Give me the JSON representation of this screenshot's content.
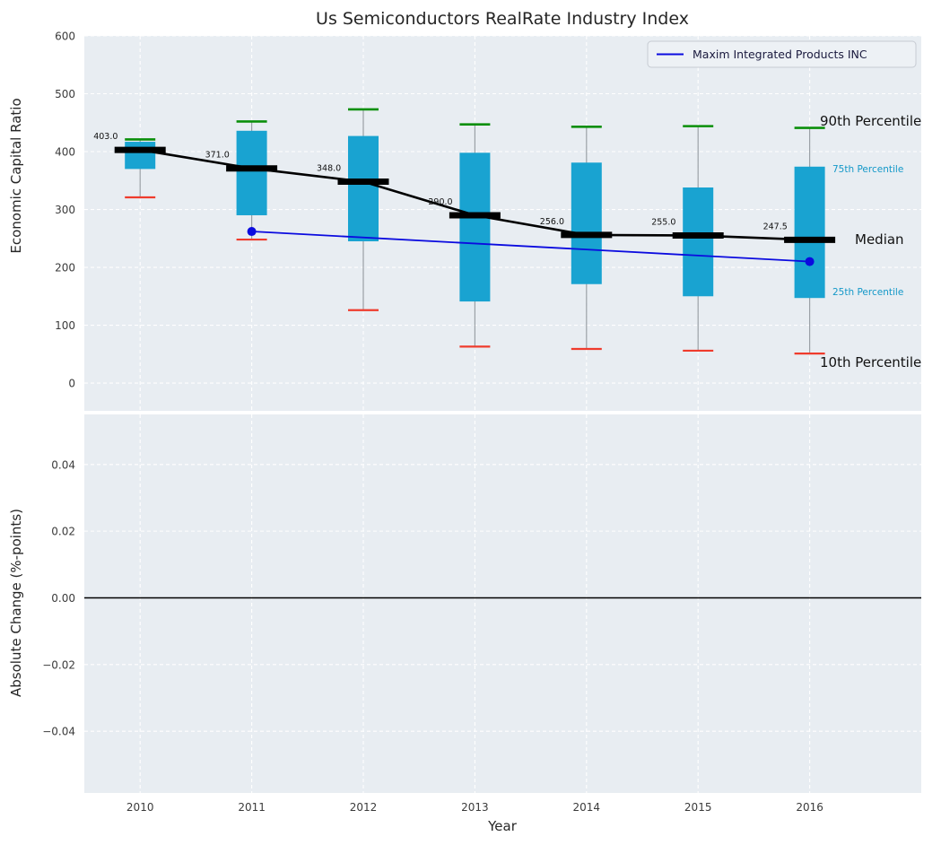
{
  "chart_data": {
    "type": "boxplot",
    "title": "Us Semiconductors RealRate Industry Index",
    "xlabel": "Year",
    "xlim": [
      2009.5,
      2017.0
    ],
    "xticks": [
      2010,
      2011,
      2012,
      2013,
      2014,
      2015,
      2016
    ],
    "panels": [
      {
        "ylabel": "Economic Capital Ratio",
        "ylim": [
          -48,
          600
        ],
        "yticks": [
          0,
          100,
          200,
          300,
          400,
          500,
          600
        ],
        "grid": true
      },
      {
        "ylabel": "Absolute Change (%-points)",
        "ylim": [
          -0.0585,
          0.055
        ],
        "yticks": [
          0.04,
          0.02,
          0.0,
          -0.02,
          -0.04
        ],
        "ytick_labels": [
          "0.04",
          "0.02",
          "0.00",
          "−0.02",
          "−0.04"
        ],
        "grid": true,
        "zero_line": 0.0
      }
    ],
    "series": {
      "years": [
        2010,
        2011,
        2012,
        2013,
        2014,
        2015,
        2016
      ],
      "median": [
        403.0,
        371.0,
        348.0,
        290.0,
        256.0,
        255.0,
        247.5
      ],
      "median_labels": [
        "403.0",
        "371.0",
        "348.0",
        "290.0",
        "256.0",
        "255.0",
        "247.5"
      ],
      "p75": [
        417,
        436,
        427,
        398,
        381,
        338,
        374
      ],
      "p25": [
        370,
        290,
        245,
        141,
        171,
        150,
        147
      ],
      "p90": [
        421,
        452,
        473,
        447,
        443,
        444,
        441
      ],
      "p10": [
        321,
        248,
        126,
        63,
        59,
        56,
        51
      ]
    },
    "company_line": {
      "name": "Maxim Integrated Products INC",
      "x": [
        2011,
        2016
      ],
      "y": [
        262,
        210
      ]
    },
    "legend": {
      "label": "Maxim Integrated Products INC",
      "position": "upper right"
    },
    "annotations": {
      "p90": "90th Percentile",
      "p75": "75th Percentile",
      "median": "Median",
      "p25": "25th Percentile",
      "p10": "10th Percentile"
    },
    "colors": {
      "box": "#19a3d1",
      "p90_cap": "#0a8f0a",
      "p10_cap": "#ef3b2c",
      "median": "#000000",
      "company": "#0b0bdf",
      "panel_bg": "#e8edf2",
      "grid": "#ffffff",
      "whisker": "#9aa0a6",
      "annotation_small": "#1398c8",
      "legend_text": "#1a1a3e",
      "zero_line": "#000000"
    }
  }
}
